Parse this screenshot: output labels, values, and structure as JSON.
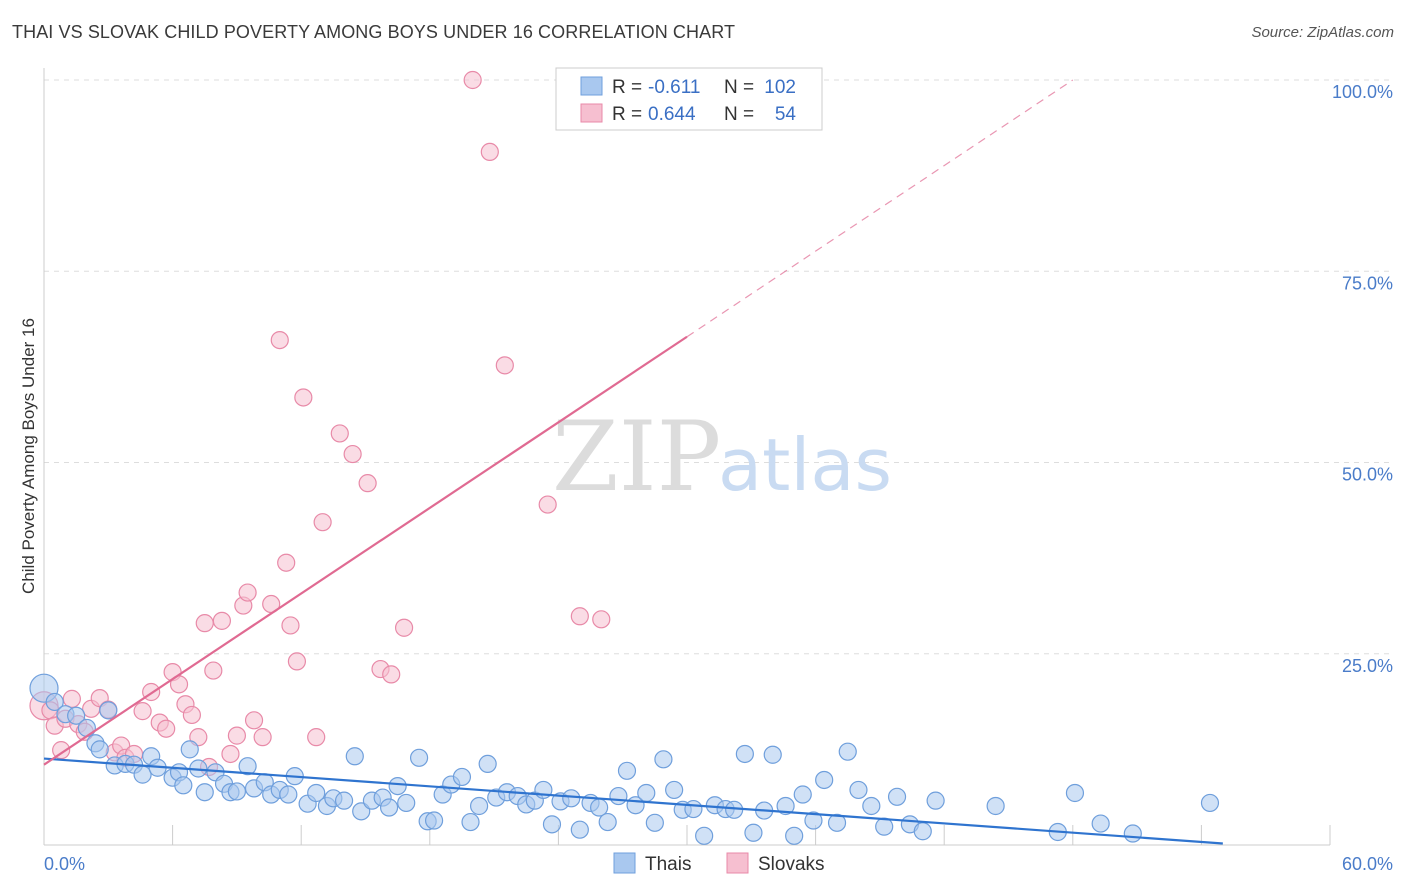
{
  "title": "THAI VS SLOVAK CHILD POVERTY AMONG BOYS UNDER 16 CORRELATION CHART",
  "source": "Source: ZipAtlas.com",
  "watermark": {
    "zip": "ZIP",
    "atlas": "atlas"
  },
  "colors": {
    "thais_fill": "#a9c8ef",
    "thais_stroke": "#6f9fdc",
    "thais_line": "#2f74cf",
    "slovaks_fill": "#f6bfd0",
    "slovaks_stroke": "#e88aa8",
    "slovaks_line": "#e06a92",
    "grid": "#dddddd",
    "tick_label": "#4a7cc9"
  },
  "legend": {
    "items": [
      {
        "r_label": "R =",
        "r_value": "-0.611",
        "n_label": "N =",
        "n_value": "102"
      },
      {
        "r_label": "R =",
        "r_value": "0.644",
        "n_label": "N =",
        "n_value": "54"
      }
    ]
  },
  "bottom_legend": [
    "Thais",
    "Slovaks"
  ],
  "chart_data": {
    "type": "scatter",
    "title": "THAI VS SLOVAK CHILD POVERTY AMONG BOYS UNDER 16 CORRELATION CHART",
    "xlabel": "",
    "ylabel": "Child Poverty Among Boys Under 16",
    "xlim": [
      0,
      60
    ],
    "ylim": [
      0,
      100
    ],
    "x_tick_labels": [
      "0.0%",
      "60.0%"
    ],
    "y_ticks": [
      25,
      50,
      75,
      100
    ],
    "y_tick_labels": [
      "25.0%",
      "50.0%",
      "75.0%",
      "100.0%"
    ],
    "grid": true,
    "series": [
      {
        "name": "Thais",
        "r": -0.611,
        "n": 102,
        "trend": {
          "x": [
            0,
            55
          ],
          "y": [
            11.3,
            0.2
          ]
        },
        "points": [
          [
            0.0,
            20.5
          ],
          [
            0.5,
            18.7
          ],
          [
            1.0,
            17.1
          ],
          [
            1.5,
            16.9
          ],
          [
            2.0,
            15.3
          ],
          [
            2.4,
            13.3
          ],
          [
            2.6,
            12.5
          ],
          [
            3.0,
            17.6
          ],
          [
            3.3,
            10.4
          ],
          [
            3.8,
            10.6
          ],
          [
            4.2,
            10.5
          ],
          [
            4.6,
            9.2
          ],
          [
            5.0,
            11.6
          ],
          [
            5.3,
            10.1
          ],
          [
            6.0,
            8.8
          ],
          [
            6.3,
            9.5
          ],
          [
            6.5,
            7.8
          ],
          [
            6.8,
            12.5
          ],
          [
            7.2,
            10.0
          ],
          [
            7.5,
            6.9
          ],
          [
            8.0,
            9.5
          ],
          [
            8.4,
            8.0
          ],
          [
            8.7,
            6.9
          ],
          [
            9.0,
            7.0
          ],
          [
            9.5,
            10.3
          ],
          [
            9.8,
            7.4
          ],
          [
            10.3,
            8.2
          ],
          [
            10.6,
            6.6
          ],
          [
            11.0,
            7.2
          ],
          [
            11.4,
            6.6
          ],
          [
            11.7,
            9.0
          ],
          [
            12.3,
            5.4
          ],
          [
            12.7,
            6.8
          ],
          [
            13.2,
            5.1
          ],
          [
            13.5,
            6.1
          ],
          [
            14.0,
            5.8
          ],
          [
            14.5,
            11.6
          ],
          [
            14.8,
            4.4
          ],
          [
            15.3,
            5.8
          ],
          [
            15.8,
            6.2
          ],
          [
            16.1,
            4.9
          ],
          [
            16.5,
            7.7
          ],
          [
            16.9,
            5.5
          ],
          [
            17.5,
            11.4
          ],
          [
            17.9,
            3.1
          ],
          [
            18.2,
            3.2
          ],
          [
            18.6,
            6.6
          ],
          [
            19.0,
            7.9
          ],
          [
            19.5,
            8.9
          ],
          [
            19.9,
            3.0
          ],
          [
            20.3,
            5.1
          ],
          [
            20.7,
            10.6
          ],
          [
            21.1,
            6.2
          ],
          [
            21.6,
            6.9
          ],
          [
            22.1,
            6.4
          ],
          [
            22.5,
            5.3
          ],
          [
            22.9,
            5.8
          ],
          [
            23.3,
            7.2
          ],
          [
            23.7,
            2.7
          ],
          [
            24.1,
            5.7
          ],
          [
            24.6,
            6.1
          ],
          [
            25.0,
            2.0
          ],
          [
            25.5,
            5.5
          ],
          [
            25.9,
            4.9
          ],
          [
            26.3,
            3.0
          ],
          [
            26.8,
            6.4
          ],
          [
            27.2,
            9.7
          ],
          [
            27.6,
            5.2
          ],
          [
            28.1,
            6.8
          ],
          [
            28.5,
            2.9
          ],
          [
            28.9,
            11.2
          ],
          [
            29.4,
            7.2
          ],
          [
            29.8,
            4.6
          ],
          [
            30.3,
            4.7
          ],
          [
            30.8,
            1.2
          ],
          [
            31.3,
            5.2
          ],
          [
            31.8,
            4.7
          ],
          [
            32.2,
            4.6
          ],
          [
            32.7,
            11.9
          ],
          [
            33.1,
            1.6
          ],
          [
            33.6,
            4.5
          ],
          [
            34.0,
            11.8
          ],
          [
            34.6,
            5.1
          ],
          [
            35.0,
            1.2
          ],
          [
            35.4,
            6.6
          ],
          [
            35.9,
            3.2
          ],
          [
            36.4,
            8.5
          ],
          [
            37.0,
            2.9
          ],
          [
            37.5,
            12.2
          ],
          [
            38.0,
            7.2
          ],
          [
            38.6,
            5.1
          ],
          [
            39.2,
            2.4
          ],
          [
            39.8,
            6.3
          ],
          [
            40.4,
            2.7
          ],
          [
            41.0,
            1.8
          ],
          [
            41.6,
            5.8
          ],
          [
            44.4,
            5.1
          ],
          [
            47.3,
            1.7
          ],
          [
            48.1,
            6.8
          ],
          [
            49.3,
            2.8
          ],
          [
            50.8,
            1.5
          ],
          [
            54.4,
            5.5
          ]
        ]
      },
      {
        "name": "Slovaks",
        "r": 0.644,
        "n": 54,
        "trend": {
          "x": [
            0,
            48
          ],
          "y": [
            10.5,
            100
          ],
          "solid_until_x": 30
        },
        "points": [
          [
            0.0,
            18.2
          ],
          [
            0.3,
            17.6
          ],
          [
            0.5,
            15.6
          ],
          [
            0.8,
            12.4
          ],
          [
            1.0,
            16.5
          ],
          [
            1.3,
            19.1
          ],
          [
            1.6,
            15.8
          ],
          [
            1.9,
            14.8
          ],
          [
            2.2,
            17.8
          ],
          [
            2.6,
            19.2
          ],
          [
            3.0,
            17.7
          ],
          [
            3.3,
            12.1
          ],
          [
            3.6,
            13.0
          ],
          [
            3.8,
            11.4
          ],
          [
            4.2,
            11.9
          ],
          [
            4.6,
            17.5
          ],
          [
            5.0,
            20.0
          ],
          [
            5.4,
            16.0
          ],
          [
            5.7,
            15.2
          ],
          [
            6.0,
            22.6
          ],
          [
            6.3,
            21.0
          ],
          [
            6.6,
            18.4
          ],
          [
            6.9,
            17.0
          ],
          [
            7.2,
            14.1
          ],
          [
            7.5,
            29.0
          ],
          [
            7.7,
            10.2
          ],
          [
            7.9,
            22.8
          ],
          [
            8.3,
            29.3
          ],
          [
            8.7,
            11.9
          ],
          [
            9.0,
            14.3
          ],
          [
            9.3,
            31.3
          ],
          [
            9.5,
            33.0
          ],
          [
            9.8,
            16.3
          ],
          [
            10.2,
            14.1
          ],
          [
            10.6,
            31.5
          ],
          [
            11.0,
            66.0
          ],
          [
            11.3,
            36.9
          ],
          [
            11.5,
            28.7
          ],
          [
            11.8,
            24.0
          ],
          [
            12.1,
            58.5
          ],
          [
            12.7,
            14.1
          ],
          [
            13.0,
            42.2
          ],
          [
            13.8,
            53.8
          ],
          [
            14.4,
            51.1
          ],
          [
            15.1,
            47.3
          ],
          [
            15.7,
            23.0
          ],
          [
            16.2,
            22.3
          ],
          [
            16.8,
            28.4
          ],
          [
            20.0,
            100.0
          ],
          [
            20.8,
            90.6
          ],
          [
            21.5,
            62.7
          ],
          [
            23.5,
            44.5
          ],
          [
            25.0,
            29.9
          ],
          [
            26.0,
            29.5
          ]
        ]
      }
    ]
  }
}
